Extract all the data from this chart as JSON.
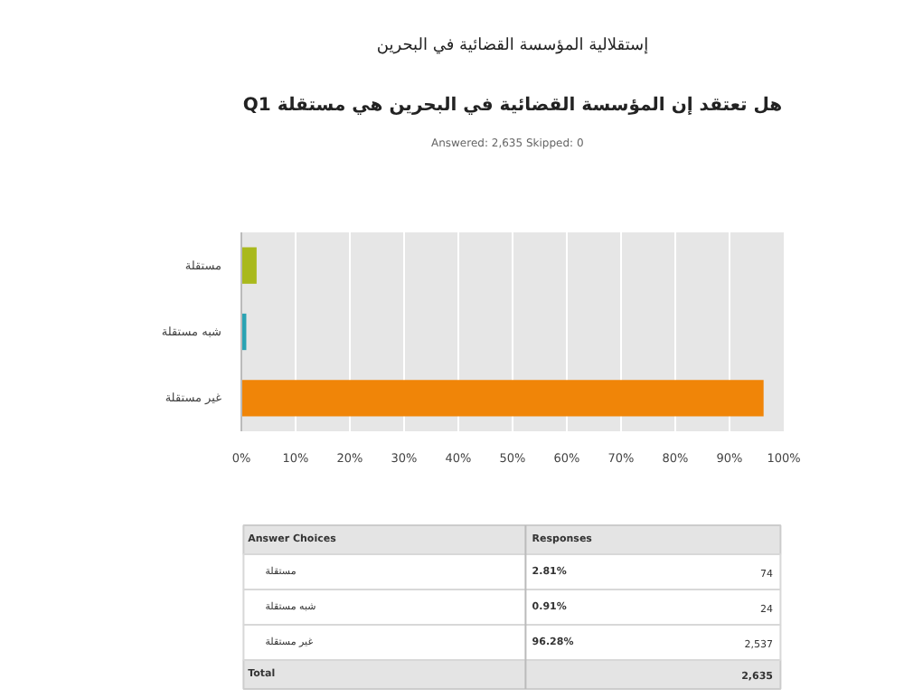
{
  "chart_data": {
    "type": "bar",
    "orientation": "horizontal",
    "title": "إستقلالية المؤسسة القضائية في البحرين",
    "subtitle": "Q1 هل تعتقد إن المؤسسة القضائية في البحرين هي مستقلة",
    "categories": [
      "مستقلة",
      "شبه مستقلة",
      "غير مستقلة"
    ],
    "values": [
      2.81,
      0.91,
      96.28
    ],
    "colors": [
      "#a9b91c",
      "#2aa3b3",
      "#f08508"
    ],
    "xlim": [
      0,
      100
    ],
    "xticks": [
      {
        "value": 0,
        "label": "0%"
      },
      {
        "value": 10,
        "label": "10%"
      },
      {
        "value": 20,
        "label": "20%"
      },
      {
        "value": 30,
        "label": "30%"
      },
      {
        "value": 40,
        "label": "40%"
      },
      {
        "value": 50,
        "label": "50%"
      },
      {
        "value": 60,
        "label": "60%"
      },
      {
        "value": 70,
        "label": "70%"
      },
      {
        "value": 80,
        "label": "80%"
      },
      {
        "value": 90,
        "label": "90%"
      },
      {
        "value": 100,
        "label": "100%"
      }
    ],
    "grid": "x",
    "annotations": [
      "Answered: 2,635    Skipped: 0",
      "Answer Choices",
      "Responses",
      "74",
      "24",
      "2,537",
      "Total",
      "2,635",
      "2.81%",
      "0.91%",
      "96.28%"
    ]
  }
}
